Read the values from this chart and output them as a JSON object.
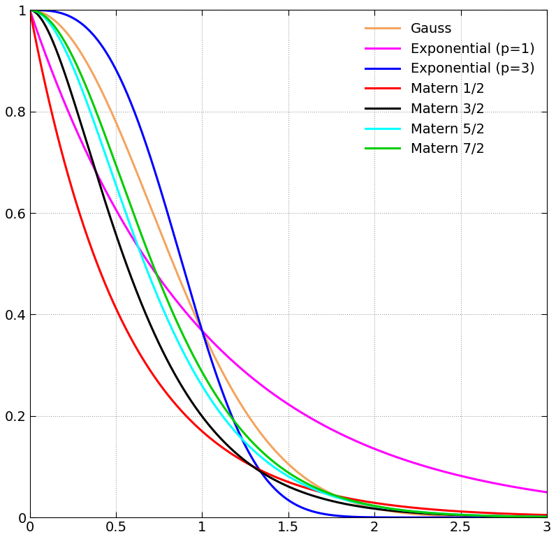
{
  "title": "",
  "xlabel": "",
  "ylabel": "",
  "xlim": [
    0,
    3
  ],
  "ylim": [
    0,
    1.0
  ],
  "x_ticks": [
    0,
    0.5,
    1.0,
    1.5,
    2.0,
    2.5,
    3.0
  ],
  "y_ticks": [
    0,
    0.2,
    0.4,
    0.6,
    0.8,
    1.0
  ],
  "grid_color": "#a0a0a0",
  "background_color": "#ffffff",
  "curves": [
    {
      "label": "Gauss",
      "color": "#f4a460",
      "type": "gauss",
      "theta": 1.0
    },
    {
      "label": "Exponential (p=1)",
      "color": "#ff00ff",
      "type": "exp_p1",
      "theta": 1.0
    },
    {
      "label": "Exponential (p=3)",
      "color": "#0000ff",
      "type": "exp_p3",
      "theta": 1.0
    },
    {
      "label": "Matern 1/2",
      "color": "#ff0000",
      "type": "matern12",
      "theta": 1.0
    },
    {
      "label": "Matern 3/2",
      "color": "#000000",
      "type": "matern32",
      "theta": 1.0
    },
    {
      "label": "Matern 5/2",
      "color": "#00ffff",
      "type": "matern52",
      "theta": 1.0
    },
    {
      "label": "Matern 7/2",
      "color": "#00cc00",
      "type": "matern72",
      "theta": 1.0
    }
  ],
  "legend_loc": "upper right",
  "legend_fontsize": 14,
  "tick_fontsize": 14,
  "linewidth": 2.2,
  "n_points": 2000,
  "x_max": 3.0
}
